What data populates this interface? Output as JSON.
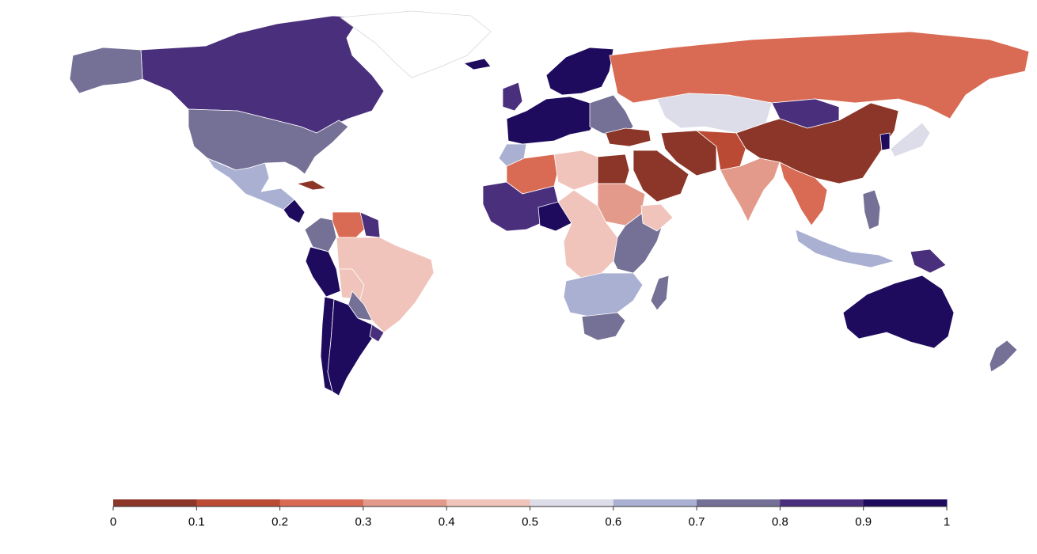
{
  "legend": {
    "stops": [
      0,
      0.1,
      0.2,
      0.3,
      0.4,
      0.5,
      0.6,
      0.7,
      0.8,
      0.9,
      1
    ],
    "tick_labels": [
      "0",
      "0.1",
      "0.2",
      "0.3",
      "0.4",
      "0.5",
      "0.6",
      "0.7",
      "0.8",
      "0.9",
      "1"
    ],
    "colors": [
      "#8b3628",
      "#bb4a34",
      "#d96a53",
      "#e49a8a",
      "#f0c4bb",
      "#dcdde8",
      "#aab0d2",
      "#747096",
      "#4a2f7c",
      "#1f0b5e"
    ]
  },
  "chart_data": {
    "type": "choropleth",
    "value_range": [
      0,
      1
    ],
    "regions": [
      {
        "name": "Canada",
        "value": 0.85
      },
      {
        "name": "United States",
        "value": 0.75
      },
      {
        "name": "Alaska",
        "value": 0.75
      },
      {
        "name": "Greenland",
        "value": null
      },
      {
        "name": "Mexico",
        "value": 0.65
      },
      {
        "name": "Cuba",
        "value": 0.05
      },
      {
        "name": "Central America",
        "value": 0.95
      },
      {
        "name": "Colombia",
        "value": 0.75
      },
      {
        "name": "Venezuela",
        "value": 0.25
      },
      {
        "name": "Guyana",
        "value": 0.85
      },
      {
        "name": "Peru",
        "value": 0.95
      },
      {
        "name": "Brazil",
        "value": 0.45
      },
      {
        "name": "Bolivia",
        "value": 0.45
      },
      {
        "name": "Paraguay",
        "value": 0.75
      },
      {
        "name": "Chile",
        "value": 0.95
      },
      {
        "name": "Argentina",
        "value": 0.95
      },
      {
        "name": "Uruguay",
        "value": 0.85
      },
      {
        "name": "Iceland",
        "value": 0.95
      },
      {
        "name": "United Kingdom",
        "value": 0.85
      },
      {
        "name": "Scandinavia",
        "value": 0.95
      },
      {
        "name": "Western Europe",
        "value": 0.95
      },
      {
        "name": "Eastern Europe",
        "value": 0.75
      },
      {
        "name": "Russia",
        "value": 0.25
      },
      {
        "name": "Kazakhstan",
        "value": 0.55
      },
      {
        "name": "Mongolia",
        "value": 0.85
      },
      {
        "name": "China",
        "value": 0.05
      },
      {
        "name": "Japan",
        "value": 0.55
      },
      {
        "name": "Korea",
        "value": 0.95
      },
      {
        "name": "Turkey",
        "value": 0.05
      },
      {
        "name": "Middle East",
        "value": 0.05
      },
      {
        "name": "Iran",
        "value": 0.05
      },
      {
        "name": "Central Asia",
        "value": 0.15
      },
      {
        "name": "India",
        "value": 0.35
      },
      {
        "name": "Southeast Asia",
        "value": 0.25
      },
      {
        "name": "Indonesia",
        "value": 0.65
      },
      {
        "name": "Philippines",
        "value": 0.75
      },
      {
        "name": "Papua New Guinea",
        "value": 0.85
      },
      {
        "name": "Australia",
        "value": 0.95
      },
      {
        "name": "New Zealand",
        "value": 0.75
      },
      {
        "name": "Morocco",
        "value": 0.65
      },
      {
        "name": "Algeria",
        "value": 0.25
      },
      {
        "name": "Libya",
        "value": 0.45
      },
      {
        "name": "Egypt",
        "value": 0.05
      },
      {
        "name": "Sudan",
        "value": 0.35
      },
      {
        "name": "West Africa",
        "value": 0.85
      },
      {
        "name": "Nigeria",
        "value": 0.95
      },
      {
        "name": "Central Africa",
        "value": 0.45
      },
      {
        "name": "East Africa",
        "value": 0.75
      },
      {
        "name": "Ethiopia",
        "value": 0.45
      },
      {
        "name": "Southern Africa",
        "value": 0.65
      },
      {
        "name": "South Africa",
        "value": 0.75
      },
      {
        "name": "Madagascar",
        "value": 0.75
      }
    ]
  }
}
